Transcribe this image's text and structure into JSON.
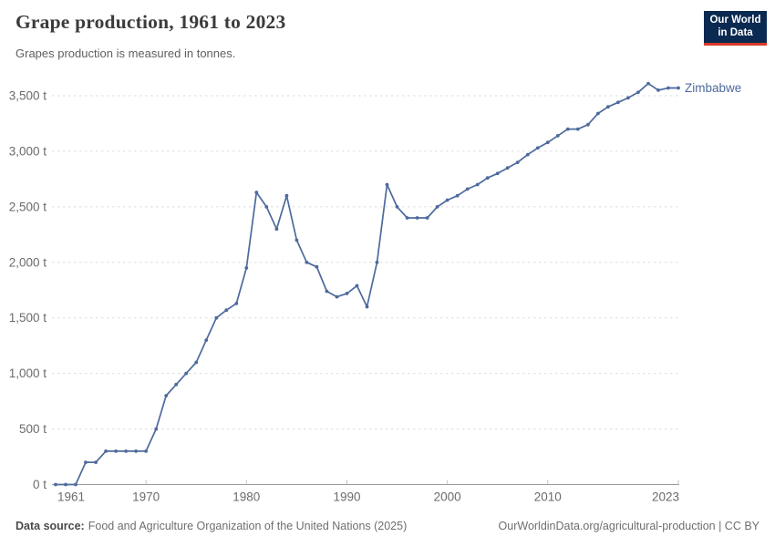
{
  "header": {
    "title": "Grape production, 1961 to 2023",
    "subtitle": "Grapes production is measured in tonnes.",
    "logo_line1": "Our World",
    "logo_line2": "in Data"
  },
  "footer": {
    "source_label": "Data source:",
    "source_text": "Food and Agriculture Organization of the United Nations (2025)",
    "link_text": "OurWorldinData.org/agricultural-production | CC BY"
  },
  "colors": {
    "line": "#4d6a9c",
    "entity_label": "#4d6a9c",
    "grid": "#dcdcdc",
    "axis": "#9a9a9a",
    "tick": "#c2c2c2",
    "tick_label": "#6b6b6b",
    "logo_bg": "#0b2a51",
    "logo_red": "#d93a2b"
  },
  "chart_data": {
    "type": "line",
    "title": "Grape production, 1961 to 2023",
    "unit": "tonnes",
    "xlabel": "",
    "ylabel": "",
    "ylim": [
      0,
      3500
    ],
    "grid": "horizontal-dashed",
    "legend_position": "end-of-line-label",
    "entity_label": "Zimbabwe",
    "yticks": [
      {
        "value": 0,
        "label": "0 t"
      },
      {
        "value": 500,
        "label": "500 t"
      },
      {
        "value": 1000,
        "label": "1,000 t"
      },
      {
        "value": 1500,
        "label": "1,500 t"
      },
      {
        "value": 2000,
        "label": "2,000 t"
      },
      {
        "value": 2500,
        "label": "2,500 t"
      },
      {
        "value": 3000,
        "label": "3,000 t"
      },
      {
        "value": 3500,
        "label": "3,500 t"
      }
    ],
    "xticks": [
      {
        "year": 1961,
        "label": "1961",
        "align": "start"
      },
      {
        "year": 1970,
        "label": "1970",
        "align": "middle"
      },
      {
        "year": 1980,
        "label": "1980",
        "align": "middle"
      },
      {
        "year": 1990,
        "label": "1990",
        "align": "middle"
      },
      {
        "year": 2000,
        "label": "2000",
        "align": "middle"
      },
      {
        "year": 2010,
        "label": "2010",
        "align": "middle"
      },
      {
        "year": 2023,
        "label": "2023",
        "align": "end"
      }
    ],
    "x": [
      1961,
      1962,
      1963,
      1964,
      1965,
      1966,
      1967,
      1968,
      1969,
      1970,
      1971,
      1972,
      1973,
      1974,
      1975,
      1976,
      1977,
      1978,
      1979,
      1980,
      1981,
      1982,
      1983,
      1984,
      1985,
      1986,
      1987,
      1988,
      1989,
      1990,
      1991,
      1992,
      1993,
      1994,
      1995,
      1996,
      1997,
      1998,
      1999,
      2000,
      2001,
      2002,
      2003,
      2004,
      2005,
      2006,
      2007,
      2008,
      2009,
      2010,
      2011,
      2012,
      2013,
      2014,
      2015,
      2016,
      2017,
      2018,
      2019,
      2020,
      2021,
      2022,
      2023
    ],
    "series": [
      {
        "name": "Zimbabwe",
        "values": [
          0,
          0,
          0,
          200,
          200,
          300,
          300,
          300,
          300,
          300,
          500,
          800,
          900,
          1000,
          1100,
          1300,
          1500,
          1570,
          1630,
          1950,
          2630,
          2500,
          2300,
          2600,
          2200,
          2000,
          1960,
          1740,
          1690,
          1720,
          1790,
          1600,
          2000,
          2700,
          2500,
          2400,
          2400,
          2400,
          2500,
          2560,
          2600,
          2660,
          2700,
          2760,
          2800,
          2850,
          2900,
          2970,
          3030,
          3080,
          3140,
          3200,
          3200,
          3240,
          3340,
          3400,
          3440,
          3480,
          3530,
          3610,
          3550,
          3570,
          3570
        ]
      }
    ]
  }
}
